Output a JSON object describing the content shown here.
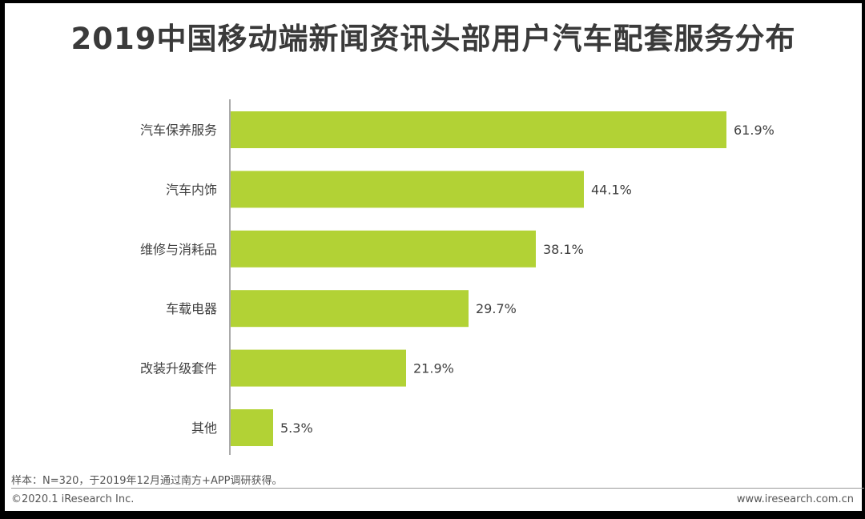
{
  "title": "2019中国移动端新闻资讯头部用户汽车配套服务分布",
  "chart_data": {
    "type": "bar",
    "orientation": "horizontal",
    "categories": [
      "汽车保养服务",
      "汽车内饰",
      "维修与消耗品",
      "车载电器",
      "改装升级套件",
      "其他"
    ],
    "values": [
      61.9,
      44.1,
      38.1,
      29.7,
      21.9,
      5.3
    ],
    "value_labels": [
      "61.9%",
      "44.1%",
      "38.1%",
      "29.7%",
      "21.9%",
      "5.3%"
    ],
    "xlim": [
      0,
      61.9
    ],
    "bar_color": "#b2d235",
    "grid": false
  },
  "footer": {
    "note": "样本：N=320，于2019年12月通过南方+APP调研获得。",
    "copyright": "©2020.1 iResearch Inc.",
    "website": "www.iresearch.com.cn"
  }
}
